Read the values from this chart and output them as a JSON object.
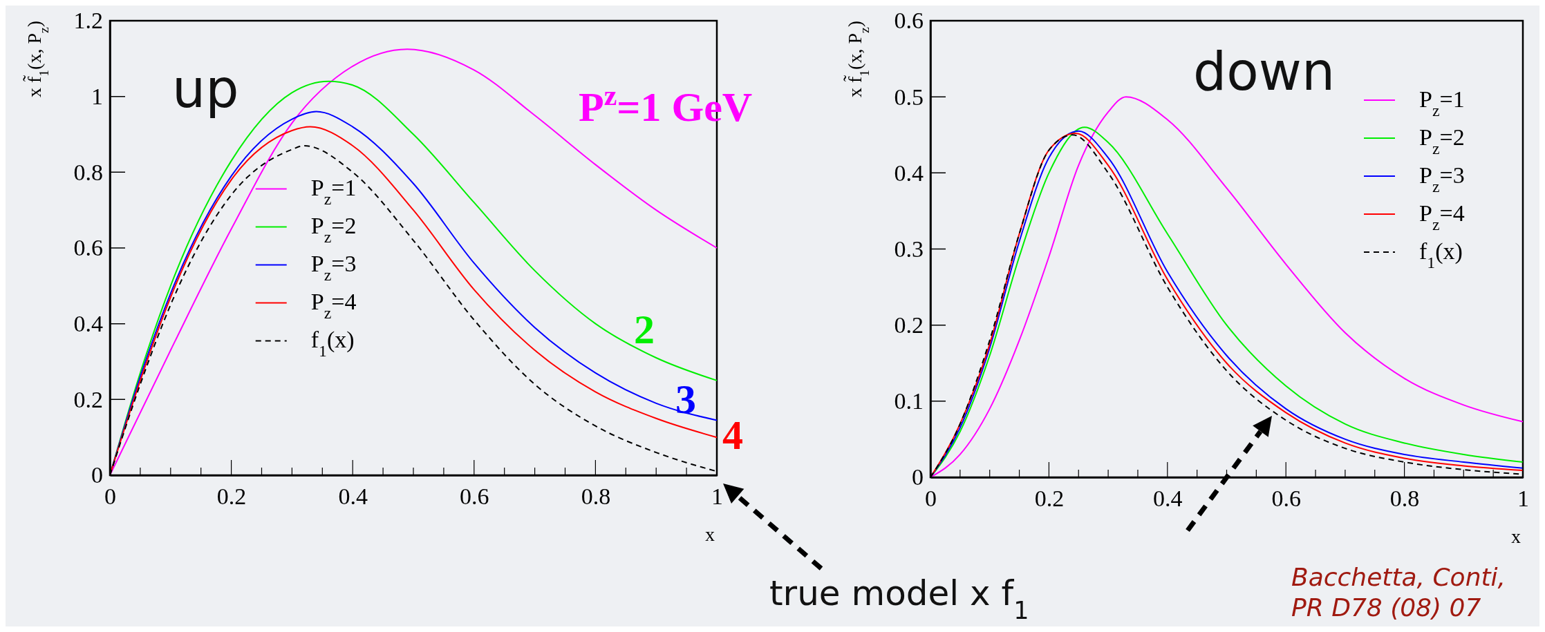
{
  "chart_data": [
    {
      "type": "line",
      "xlabel": "x",
      "ylabel": "x f̃$_{1}$(x, P$_{z}$)",
      "xlim": [
        0,
        1
      ],
      "ylim": [
        0,
        1.2
      ],
      "xticks": [
        0,
        0.2,
        0.4,
        0.6,
        0.8,
        1
      ],
      "yticks": [
        0,
        0.2,
        0.4,
        0.6,
        0.8,
        1,
        1.2
      ],
      "legend": "left",
      "grid": false,
      "annotations": [
        "up",
        "P$^{z}$=1 GeV",
        "2",
        "3",
        "4"
      ],
      "series": [
        {
          "name": "P$_{z}$=1",
          "color": "#ff00ff",
          "x": [
            0,
            0.1,
            0.2,
            0.3,
            0.4,
            0.49,
            0.6,
            0.7,
            0.8,
            0.9,
            1
          ],
          "values": [
            0,
            0.33,
            0.65,
            0.93,
            1.08,
            1.125,
            1.07,
            0.95,
            0.82,
            0.7,
            0.6
          ]
        },
        {
          "name": "P$_{z}$=2",
          "color": "#00ee00",
          "x": [
            0,
            0.05,
            0.1,
            0.2,
            0.3,
            0.36,
            0.4,
            0.5,
            0.6,
            0.7,
            0.8,
            0.9,
            1
          ],
          "values": [
            0,
            0.27,
            0.5,
            0.83,
            1.01,
            1.04,
            1.03,
            0.9,
            0.72,
            0.54,
            0.4,
            0.31,
            0.25
          ]
        },
        {
          "name": "P$_{z}$=3",
          "color": "#0000ff",
          "x": [
            0,
            0.05,
            0.1,
            0.2,
            0.3,
            0.34,
            0.4,
            0.5,
            0.6,
            0.7,
            0.8,
            0.9,
            1
          ],
          "values": [
            0,
            0.26,
            0.48,
            0.79,
            0.94,
            0.96,
            0.92,
            0.77,
            0.56,
            0.39,
            0.27,
            0.19,
            0.145
          ]
        },
        {
          "name": "P$_{z}$=4",
          "color": "#ff0000",
          "x": [
            0,
            0.05,
            0.1,
            0.2,
            0.3,
            0.33,
            0.4,
            0.5,
            0.6,
            0.7,
            0.8,
            0.9,
            1
          ],
          "values": [
            0,
            0.25,
            0.47,
            0.78,
            0.91,
            0.92,
            0.87,
            0.7,
            0.49,
            0.33,
            0.22,
            0.15,
            0.1
          ]
        },
        {
          "name": "f$_{1}$(x)",
          "color": "#000000",
          "line_style": "dashed",
          "x": [
            0,
            0.05,
            0.1,
            0.2,
            0.3,
            0.32,
            0.4,
            0.5,
            0.6,
            0.7,
            0.8,
            0.9,
            1
          ],
          "values": [
            0,
            0.24,
            0.45,
            0.74,
            0.86,
            0.87,
            0.8,
            0.62,
            0.41,
            0.24,
            0.13,
            0.06,
            0.01
          ]
        }
      ]
    },
    {
      "type": "line",
      "xlabel": "x",
      "ylabel": "x f̃$_{1}$(x, P$_{z}$)",
      "xlim": [
        0,
        1
      ],
      "ylim": [
        0,
        0.6
      ],
      "xticks": [
        0,
        0.2,
        0.4,
        0.6,
        0.8,
        1
      ],
      "yticks": [
        0,
        0.1,
        0.2,
        0.3,
        0.4,
        0.5,
        0.6
      ],
      "legend": "top right",
      "grid": false,
      "annotations": [
        "down",
        "true model  x f$_{1}$",
        "Bacchetta, Conti,",
        "PR D78 (08) 07"
      ],
      "series": [
        {
          "name": "P$_{z}$=1",
          "color": "#ff00ff",
          "x": [
            0,
            0.05,
            0.1,
            0.15,
            0.2,
            0.25,
            0.3,
            0.33,
            0.4,
            0.5,
            0.6,
            0.7,
            0.8,
            0.9,
            1
          ],
          "values": [
            0,
            0.03,
            0.09,
            0.18,
            0.29,
            0.41,
            0.48,
            0.5,
            0.47,
            0.38,
            0.28,
            0.19,
            0.13,
            0.095,
            0.073
          ]
        },
        {
          "name": "P$_{z}$=2",
          "color": "#00ee00",
          "x": [
            0,
            0.05,
            0.1,
            0.15,
            0.2,
            0.26,
            0.3,
            0.4,
            0.5,
            0.6,
            0.7,
            0.8,
            0.9,
            1
          ],
          "values": [
            0,
            0.06,
            0.16,
            0.29,
            0.4,
            0.46,
            0.44,
            0.32,
            0.2,
            0.12,
            0.07,
            0.045,
            0.03,
            0.02
          ]
        },
        {
          "name": "P$_{z}$=3",
          "color": "#0000ff",
          "x": [
            0,
            0.05,
            0.1,
            0.15,
            0.2,
            0.25,
            0.3,
            0.4,
            0.5,
            0.6,
            0.7,
            0.8,
            0.9,
            1
          ],
          "values": [
            0,
            0.065,
            0.17,
            0.31,
            0.42,
            0.455,
            0.42,
            0.27,
            0.16,
            0.09,
            0.05,
            0.03,
            0.02,
            0.012
          ]
        },
        {
          "name": "P$_{z}$=4",
          "color": "#ff0000",
          "x": [
            0,
            0.05,
            0.1,
            0.15,
            0.2,
            0.245,
            0.3,
            0.4,
            0.5,
            0.6,
            0.7,
            0.8,
            0.9,
            1
          ],
          "values": [
            0,
            0.07,
            0.175,
            0.32,
            0.43,
            0.452,
            0.41,
            0.26,
            0.15,
            0.085,
            0.045,
            0.025,
            0.015,
            0.009
          ]
        },
        {
          "name": "f$_{1}$(x)",
          "color": "#000000",
          "line_style": "dashed",
          "x": [
            0,
            0.05,
            0.1,
            0.15,
            0.2,
            0.24,
            0.3,
            0.4,
            0.5,
            0.6,
            0.7,
            0.8,
            0.9,
            1
          ],
          "values": [
            0,
            0.07,
            0.18,
            0.32,
            0.43,
            0.45,
            0.4,
            0.25,
            0.14,
            0.075,
            0.038,
            0.02,
            0.01,
            0.004
          ]
        }
      ]
    }
  ]
}
